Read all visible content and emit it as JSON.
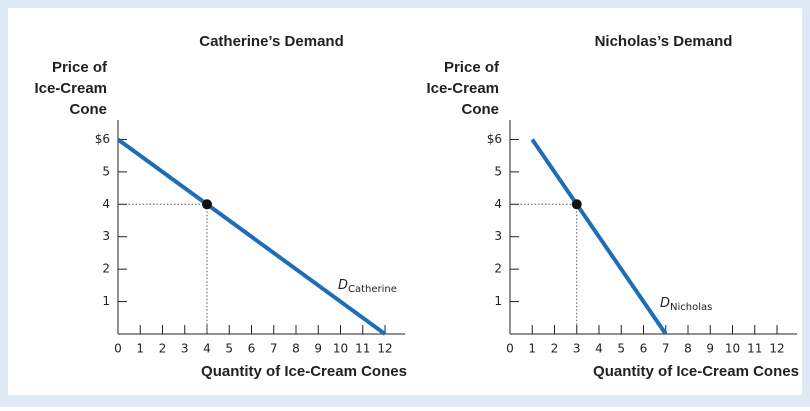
{
  "chart_data": [
    {
      "type": "line",
      "title": "Catherine’s Demand",
      "ylabel_lines": [
        "Price of",
        "Ice-Cream",
        "Cone"
      ],
      "xlabel": "Quantity of Ice-Cream Cones",
      "xlim": [
        0,
        12.9
      ],
      "ylim": [
        0,
        6.6
      ],
      "xticks": [
        0,
        1,
        2,
        3,
        4,
        5,
        6,
        7,
        8,
        9,
        10,
        11,
        12
      ],
      "yticks": [
        1,
        2,
        3,
        4,
        5,
        {
          "value": 6,
          "label": "$6"
        }
      ],
      "series": [
        {
          "name": "D",
          "subscript": "Catherine",
          "color": "#1f6db4",
          "x": [
            0,
            12
          ],
          "values": [
            6,
            0
          ]
        }
      ],
      "highlight": {
        "x": 4,
        "y": 4
      }
    },
    {
      "type": "line",
      "title": "Nicholas’s Demand",
      "ylabel_lines": [
        "Price of",
        "Ice-Cream",
        "Cone"
      ],
      "xlabel": "Quantity of Ice-Cream Cones",
      "xlim": [
        0,
        12.9
      ],
      "ylim": [
        0,
        6.6
      ],
      "xticks": [
        0,
        1,
        2,
        3,
        4,
        5,
        6,
        7,
        8,
        9,
        10,
        11,
        12
      ],
      "yticks": [
        1,
        2,
        3,
        4,
        5,
        {
          "value": 6,
          "label": "$6"
        }
      ],
      "series": [
        {
          "name": "D",
          "subscript": "Nicholas",
          "color": "#1f6db4",
          "x": [
            1,
            7
          ],
          "values": [
            6,
            0
          ]
        }
      ],
      "highlight": {
        "x": 3,
        "y": 4
      }
    }
  ]
}
